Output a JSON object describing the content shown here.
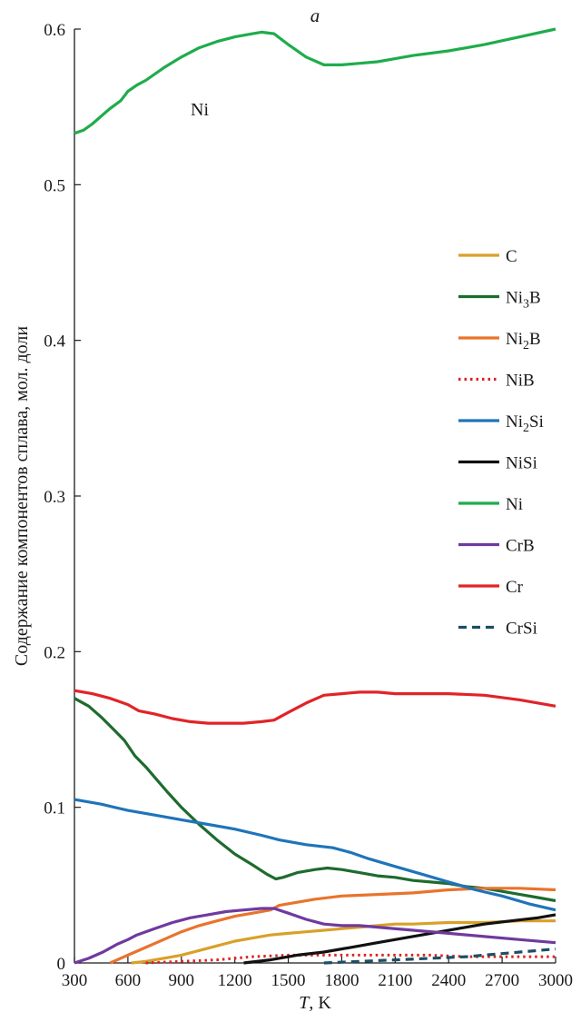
{
  "chart_data": {
    "type": "line",
    "title": "a",
    "xlabel_italic": "T",
    "xlabel_unit": ", K",
    "ylabel": "Содержание компонентов сплава, мол. доли",
    "xlim": [
      300,
      3000
    ],
    "ylim": [
      0,
      0.6
    ],
    "x_ticks": [
      300,
      600,
      900,
      1200,
      1500,
      1800,
      2100,
      2400,
      2700,
      3000
    ],
    "y_ticks": [
      {
        "value": 0,
        "label": "0"
      },
      {
        "value": 0.1,
        "label": "0.1"
      },
      {
        "value": 0.2,
        "label": "0.2"
      },
      {
        "value": 0.3,
        "label": "0.3"
      },
      {
        "value": 0.4,
        "label": "0.4"
      },
      {
        "value": 0.5,
        "label": "0.5"
      },
      {
        "value": 0.6,
        "label": "0.6"
      }
    ],
    "grid": false,
    "legend_position": "right",
    "annotations": [
      {
        "text": "Ni",
        "x": 1000,
        "y": 0.565
      }
    ],
    "series": [
      {
        "id": "c",
        "name": "C",
        "name_base": "C",
        "name_sub": "",
        "name_tail": "",
        "color": "#d9a02a",
        "dash": "solid",
        "points": [
          [
            620,
            0
          ],
          [
            700,
            0.001
          ],
          [
            800,
            0.003
          ],
          [
            900,
            0.005
          ],
          [
            1000,
            0.008
          ],
          [
            1100,
            0.011
          ],
          [
            1200,
            0.014
          ],
          [
            1300,
            0.016
          ],
          [
            1400,
            0.018
          ],
          [
            1500,
            0.019
          ],
          [
            1600,
            0.02
          ],
          [
            1700,
            0.021
          ],
          [
            1800,
            0.022
          ],
          [
            1900,
            0.023
          ],
          [
            2000,
            0.024
          ],
          [
            2100,
            0.025
          ],
          [
            2200,
            0.025
          ],
          [
            2400,
            0.026
          ],
          [
            2600,
            0.026
          ],
          [
            2800,
            0.027
          ],
          [
            3000,
            0.027
          ]
        ]
      },
      {
        "id": "ni3b",
        "name": "Ni3B",
        "name_base": "Ni",
        "name_sub": "3",
        "name_tail": "B",
        "color": "#1e6b2e",
        "dash": "solid",
        "points": [
          [
            300,
            0.17
          ],
          [
            380,
            0.165
          ],
          [
            450,
            0.158
          ],
          [
            520,
            0.15
          ],
          [
            580,
            0.143
          ],
          [
            640,
            0.133
          ],
          [
            700,
            0.126
          ],
          [
            760,
            0.118
          ],
          [
            820,
            0.11
          ],
          [
            900,
            0.1
          ],
          [
            1000,
            0.089
          ],
          [
            1100,
            0.079
          ],
          [
            1200,
            0.07
          ],
          [
            1300,
            0.063
          ],
          [
            1380,
            0.057
          ],
          [
            1430,
            0.054
          ],
          [
            1470,
            0.055
          ],
          [
            1550,
            0.058
          ],
          [
            1650,
            0.06
          ],
          [
            1720,
            0.061
          ],
          [
            1800,
            0.06
          ],
          [
            1900,
            0.058
          ],
          [
            2000,
            0.056
          ],
          [
            2100,
            0.055
          ],
          [
            2200,
            0.053
          ],
          [
            2300,
            0.052
          ],
          [
            2400,
            0.051
          ],
          [
            2500,
            0.049
          ],
          [
            2600,
            0.048
          ],
          [
            2700,
            0.046
          ],
          [
            2800,
            0.044
          ],
          [
            2900,
            0.042
          ],
          [
            3000,
            0.04
          ]
        ]
      },
      {
        "id": "ni2b",
        "name": "Ni2B",
        "name_base": "Ni",
        "name_sub": "2",
        "name_tail": "B",
        "color": "#e8742c",
        "dash": "solid",
        "points": [
          [
            500,
            0
          ],
          [
            600,
            0.005
          ],
          [
            700,
            0.01
          ],
          [
            800,
            0.015
          ],
          [
            900,
            0.02
          ],
          [
            1000,
            0.024
          ],
          [
            1100,
            0.027
          ],
          [
            1200,
            0.03
          ],
          [
            1300,
            0.032
          ],
          [
            1400,
            0.034
          ],
          [
            1450,
            0.037
          ],
          [
            1550,
            0.039
          ],
          [
            1650,
            0.041
          ],
          [
            1800,
            0.043
          ],
          [
            2000,
            0.044
          ],
          [
            2200,
            0.045
          ],
          [
            2400,
            0.047
          ],
          [
            2600,
            0.048
          ],
          [
            2800,
            0.048
          ],
          [
            3000,
            0.047
          ]
        ]
      },
      {
        "id": "nib",
        "name": "NiB",
        "name_base": "NiB",
        "name_sub": "",
        "name_tail": "",
        "color": "#e02020",
        "dash": "dotted",
        "points": [
          [
            700,
            0
          ],
          [
            900,
            0.001
          ],
          [
            1100,
            0.002
          ],
          [
            1300,
            0.004
          ],
          [
            1500,
            0.005
          ],
          [
            1700,
            0.005
          ],
          [
            1900,
            0.005
          ],
          [
            2100,
            0.005
          ],
          [
            2300,
            0.005
          ],
          [
            2500,
            0.004
          ],
          [
            2700,
            0.004
          ],
          [
            2900,
            0.004
          ],
          [
            3000,
            0.004
          ]
        ]
      },
      {
        "id": "ni2si",
        "name": "Ni2Si",
        "name_base": "Ni",
        "name_sub": "2",
        "name_tail": "Si",
        "color": "#1f74b9",
        "dash": "solid",
        "points": [
          [
            300,
            0.105
          ],
          [
            450,
            0.102
          ],
          [
            600,
            0.098
          ],
          [
            750,
            0.095
          ],
          [
            900,
            0.092
          ],
          [
            1050,
            0.089
          ],
          [
            1200,
            0.086
          ],
          [
            1350,
            0.082
          ],
          [
            1450,
            0.079
          ],
          [
            1600,
            0.076
          ],
          [
            1750,
            0.074
          ],
          [
            1850,
            0.071
          ],
          [
            1950,
            0.067
          ],
          [
            2100,
            0.062
          ],
          [
            2250,
            0.057
          ],
          [
            2400,
            0.052
          ],
          [
            2550,
            0.047
          ],
          [
            2700,
            0.043
          ],
          [
            2850,
            0.038
          ],
          [
            3000,
            0.034
          ]
        ]
      },
      {
        "id": "nisi",
        "name": "NiSi",
        "name_base": "NiSi",
        "name_sub": "",
        "name_tail": "",
        "color": "#111111",
        "dash": "solid",
        "points": [
          [
            1250,
            0
          ],
          [
            1400,
            0.002
          ],
          [
            1550,
            0.005
          ],
          [
            1700,
            0.007
          ],
          [
            1850,
            0.01
          ],
          [
            2000,
            0.013
          ],
          [
            2150,
            0.016
          ],
          [
            2300,
            0.019
          ],
          [
            2450,
            0.022
          ],
          [
            2600,
            0.025
          ],
          [
            2750,
            0.027
          ],
          [
            2900,
            0.029
          ],
          [
            3000,
            0.031
          ]
        ]
      },
      {
        "id": "ni",
        "name": "Ni",
        "name_base": "Ni",
        "name_sub": "",
        "name_tail": "",
        "color": "#1fac4c",
        "dash": "solid",
        "points": [
          [
            300,
            0.533
          ],
          [
            350,
            0.535
          ],
          [
            400,
            0.539
          ],
          [
            450,
            0.544
          ],
          [
            500,
            0.549
          ],
          [
            560,
            0.554
          ],
          [
            600,
            0.56
          ],
          [
            650,
            0.564
          ],
          [
            700,
            0.567
          ],
          [
            800,
            0.575
          ],
          [
            900,
            0.582
          ],
          [
            1000,
            0.588
          ],
          [
            1100,
            0.592
          ],
          [
            1200,
            0.595
          ],
          [
            1300,
            0.597
          ],
          [
            1350,
            0.598
          ],
          [
            1420,
            0.597
          ],
          [
            1500,
            0.59
          ],
          [
            1600,
            0.582
          ],
          [
            1700,
            0.577
          ],
          [
            1800,
            0.577
          ],
          [
            1900,
            0.578
          ],
          [
            2000,
            0.579
          ],
          [
            2100,
            0.581
          ],
          [
            2200,
            0.583
          ],
          [
            2400,
            0.586
          ],
          [
            2600,
            0.59
          ],
          [
            2800,
            0.595
          ],
          [
            3000,
            0.6
          ]
        ]
      },
      {
        "id": "crb",
        "name": "CrB",
        "name_base": "CrB",
        "name_sub": "",
        "name_tail": "",
        "color": "#6f3a9e",
        "dash": "solid",
        "points": [
          [
            300,
            0
          ],
          [
            380,
            0.003
          ],
          [
            460,
            0.007
          ],
          [
            540,
            0.012
          ],
          [
            600,
            0.015
          ],
          [
            650,
            0.018
          ],
          [
            750,
            0.022
          ],
          [
            850,
            0.026
          ],
          [
            950,
            0.029
          ],
          [
            1050,
            0.031
          ],
          [
            1150,
            0.033
          ],
          [
            1250,
            0.034
          ],
          [
            1350,
            0.035
          ],
          [
            1420,
            0.035
          ],
          [
            1500,
            0.032
          ],
          [
            1600,
            0.028
          ],
          [
            1700,
            0.025
          ],
          [
            1800,
            0.024
          ],
          [
            1900,
            0.024
          ],
          [
            2000,
            0.023
          ],
          [
            2200,
            0.021
          ],
          [
            2400,
            0.019
          ],
          [
            2600,
            0.017
          ],
          [
            2800,
            0.015
          ],
          [
            3000,
            0.013
          ]
        ]
      },
      {
        "id": "cr",
        "name": "Cr",
        "name_base": "Cr",
        "name_sub": "",
        "name_tail": "",
        "color": "#e02428",
        "dash": "solid",
        "points": [
          [
            300,
            0.175
          ],
          [
            400,
            0.173
          ],
          [
            500,
            0.17
          ],
          [
            600,
            0.166
          ],
          [
            660,
            0.162
          ],
          [
            750,
            0.16
          ],
          [
            850,
            0.157
          ],
          [
            950,
            0.155
          ],
          [
            1050,
            0.154
          ],
          [
            1150,
            0.154
          ],
          [
            1250,
            0.154
          ],
          [
            1350,
            0.155
          ],
          [
            1420,
            0.156
          ],
          [
            1500,
            0.161
          ],
          [
            1600,
            0.167
          ],
          [
            1700,
            0.172
          ],
          [
            1800,
            0.173
          ],
          [
            1900,
            0.174
          ],
          [
            2000,
            0.174
          ],
          [
            2100,
            0.173
          ],
          [
            2200,
            0.173
          ],
          [
            2400,
            0.173
          ],
          [
            2600,
            0.172
          ],
          [
            2800,
            0.169
          ],
          [
            3000,
            0.165
          ]
        ]
      },
      {
        "id": "crsi",
        "name": "CrSi",
        "name_base": "CrSi",
        "name_sub": "",
        "name_tail": "",
        "color": "#1a4f66",
        "dash": "dashed",
        "points": [
          [
            1700,
            0
          ],
          [
            1900,
            0.001
          ],
          [
            2100,
            0.002
          ],
          [
            2300,
            0.003
          ],
          [
            2500,
            0.004
          ],
          [
            2700,
            0.006
          ],
          [
            2900,
            0.008
          ],
          [
            3000,
            0.009
          ]
        ]
      }
    ]
  }
}
